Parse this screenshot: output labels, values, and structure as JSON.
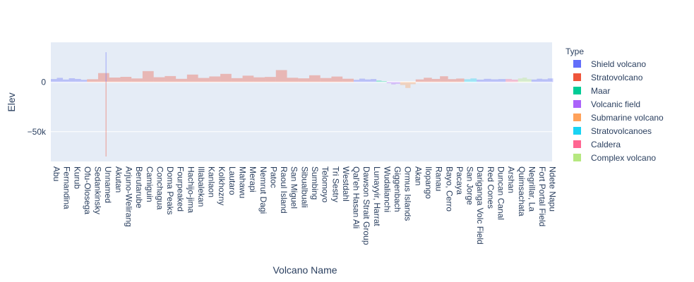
{
  "chart_data": {
    "type": "bar",
    "title": "",
    "xlabel": "Volcano Name",
    "ylabel": "Elev",
    "ylim": [
      -80000,
      40000
    ],
    "y_ticks": [
      {
        "value": 0,
        "label": "0"
      },
      {
        "value": -50000,
        "label": "−50k"
      }
    ],
    "x_tick_labels": [
      "Abu",
      "Fernandina",
      "Kurub",
      "Ofu-Olosega",
      "Sedankinsky",
      "Unnamed",
      "Akutan",
      "Arjuno-Welirang",
      "Berutarube",
      "Camiguin",
      "Conchagua",
      "Doma Peaks",
      "Fourpeaked",
      "Hachijo-jima",
      "Illabalekan",
      "Kanlaon",
      "Kolkhozny",
      "Lautaro",
      "Mahawu",
      "Merapi",
      "Nemrut Dagi",
      "Patoc",
      "Raoul Island",
      "San Miguel",
      "Sibualbuali",
      "Sumbing",
      "Telomoyo",
      "Tri Sestry",
      "Westdahl",
      "Qal'eh Hasan Ali",
      "Dawson Strait Group",
      "Lunayyir, Harrat",
      "Wudalianchi",
      "Giggenbach",
      "Ormus Islands",
      "Akan",
      "Ilopango",
      "Ranau",
      "Bayo, Cerro",
      "Pacaya",
      "San Jorge",
      "Dariganga Volc Field",
      "Red Cones",
      "Duncan Canal",
      "Arshan",
      "Quimsachata",
      "Negrillar, La",
      "Fort Portal Field",
      "Ndete Napu"
    ],
    "legend": {
      "title": "Type",
      "placement": "right",
      "items": [
        {
          "name": "Shield volcano",
          "color": "#636efa"
        },
        {
          "name": "Stratovolcano",
          "color": "#EF553B"
        },
        {
          "name": "Maar",
          "color": "#00cc96"
        },
        {
          "name": "Volcanic field",
          "color": "#ab63fa"
        },
        {
          "name": "Submarine volcano",
          "color": "#FFA15A"
        },
        {
          "name": "Stratovolcanoes",
          "color": "#19d3f3"
        },
        {
          "name": "Caldera",
          "color": "#FF6692"
        },
        {
          "name": "Complex volcano",
          "color": "#B6E880"
        }
      ]
    },
    "series": [
      {
        "name": "Shield volcano",
        "color": "#636efa",
        "start": 0,
        "end": 3.5,
        "values": [
          3000,
          4200,
          2500,
          3800,
          3100,
          2200
        ]
      },
      {
        "name": "Stratovolcano",
        "color": "#EF553B",
        "start": 3.5,
        "end": 29.3,
        "values": [
          2800,
          9000,
          4500,
          5200,
          3600,
          11000,
          4800,
          6000,
          3200,
          7500,
          4100,
          5600,
          8200,
          3900,
          6400,
          4700,
          5100,
          12000,
          4300,
          3700,
          6800,
          4000,
          5500,
          3300
        ]
      },
      {
        "name": "Shield volcano",
        "color": "#636efa",
        "start": 29.3,
        "end": 31.5,
        "values": [
          2200,
          3400,
          2600,
          3000
        ]
      },
      {
        "name": "Maar",
        "color": "#00cc96",
        "start": 31.5,
        "end": 32.5,
        "values": [
          1500,
          900
        ]
      },
      {
        "name": "Volcanic field",
        "color": "#ab63fa",
        "start": 32.5,
        "end": 33.8,
        "values": [
          -1200,
          -2400,
          -1800
        ]
      },
      {
        "name": "Submarine volcano",
        "color": "#FFA15A",
        "start": 33.8,
        "end": 35.3,
        "values": [
          -3000,
          -6000,
          -2200
        ]
      },
      {
        "name": "Stratovolcano",
        "color": "#EF553B",
        "start": 35.3,
        "end": 40,
        "values": [
          2600,
          4300,
          3100,
          5800,
          2900,
          3500
        ]
      },
      {
        "name": "Stratovolcanoes",
        "color": "#19d3f3",
        "start": 40,
        "end": 41.2,
        "values": [
          2800,
          3600
        ]
      },
      {
        "name": "Shield volcano",
        "color": "#636efa",
        "start": 41.2,
        "end": 44,
        "values": [
          2400,
          3200,
          2700,
          3000
        ]
      },
      {
        "name": "Caldera",
        "color": "#FF6692",
        "start": 44,
        "end": 45.2,
        "values": [
          3100,
          2400
        ]
      },
      {
        "name": "Complex volcano",
        "color": "#B6E880",
        "start": 45.2,
        "end": 46.5,
        "values": [
          3600,
          4400,
          2900
        ]
      },
      {
        "name": "Shield volcano",
        "color": "#636efa",
        "start": 46.5,
        "end": 48.6,
        "values": [
          2500,
          3300,
          2800,
          3600
        ]
      }
    ],
    "spikes": [
      {
        "x": 5,
        "value": 30000,
        "color": "#636efa"
      },
      {
        "x": 5,
        "value": -75000,
        "color": "#EF553B"
      }
    ],
    "grid": true
  }
}
